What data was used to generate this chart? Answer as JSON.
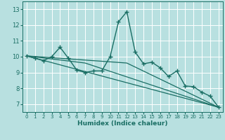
{
  "title": "",
  "xlabel": "Humidex (Indice chaleur)",
  "xlim": [
    -0.5,
    23.5
  ],
  "ylim": [
    6.5,
    13.5
  ],
  "yticks": [
    7,
    8,
    9,
    10,
    11,
    12,
    13
  ],
  "xticks": [
    0,
    1,
    2,
    3,
    4,
    5,
    6,
    7,
    8,
    9,
    10,
    11,
    12,
    13,
    14,
    15,
    16,
    17,
    18,
    19,
    20,
    21,
    22,
    23
  ],
  "background_color": "#b8e0e0",
  "grid_color": "#ffffff",
  "line_color": "#1a6e64",
  "series": [
    {
      "x": [
        0,
        1,
        2,
        3,
        4,
        5,
        6,
        7,
        8,
        9,
        10,
        11,
        12,
        13,
        14,
        15,
        16,
        17,
        18,
        19,
        20,
        21,
        22,
        23
      ],
      "y": [
        10.05,
        9.9,
        9.75,
        10.0,
        10.6,
        9.9,
        9.15,
        9.0,
        9.1,
        9.1,
        10.0,
        12.2,
        12.85,
        10.3,
        9.55,
        9.65,
        9.3,
        8.75,
        9.1,
        8.15,
        8.1,
        7.75,
        7.5,
        6.8
      ],
      "marker": "+",
      "marker_size": 4,
      "linewidth": 1.0
    },
    {
      "x": [
        0,
        23
      ],
      "y": [
        10.05,
        6.8
      ],
      "marker": null,
      "linewidth": 0.9
    },
    {
      "x": [
        0,
        12,
        23
      ],
      "y": [
        10.05,
        9.6,
        6.8
      ],
      "marker": null,
      "linewidth": 0.9
    },
    {
      "x": [
        0,
        7,
        23
      ],
      "y": [
        10.05,
        9.6,
        6.8
      ],
      "marker": null,
      "linewidth": 0.9
    }
  ]
}
